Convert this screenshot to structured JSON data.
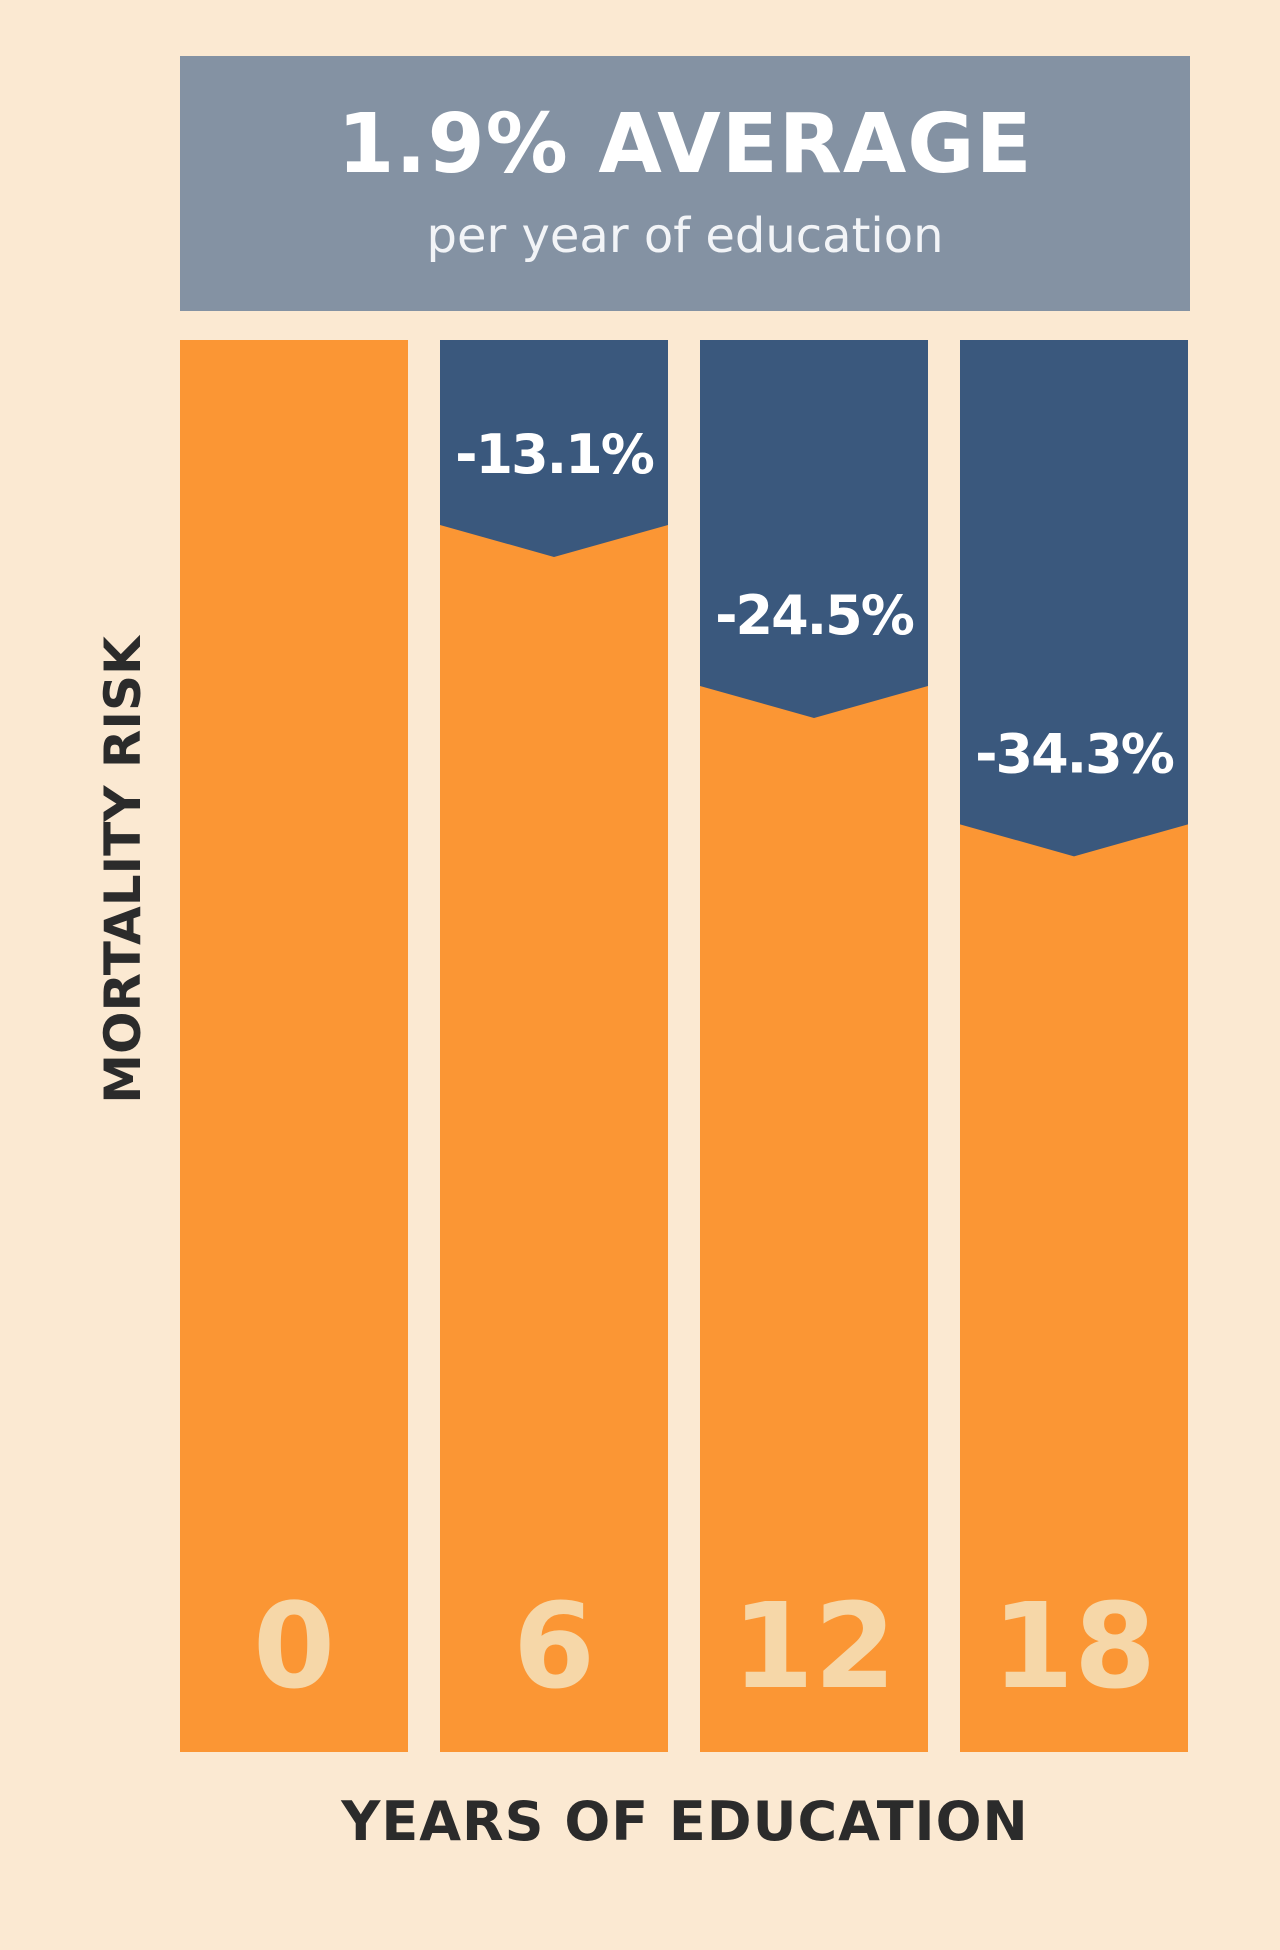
{
  "header": {
    "title": "1.9% AVERAGE",
    "subtitle": "per year of education"
  },
  "colors": {
    "background": "#fbe9d2",
    "header": "#8492a3",
    "risk_bar": "#fb9634",
    "reduction_bar": "#3a587d",
    "category_text": "#f6d7a8"
  },
  "chart_data": {
    "type": "bar",
    "title": "1.9% AVERAGE",
    "subtitle": "per year of education",
    "xlabel": "YEARS OF EDUCATION",
    "ylabel": "MORTALITY RISK",
    "categories": [
      "0",
      "6",
      "12",
      "18"
    ],
    "series": [
      {
        "values": [
          100,
          86.9,
          75.5,
          65.7
        ]
      },
      {
        "values": [
          0,
          13.1,
          24.5,
          34.3
        ]
      }
    ],
    "data_labels": [
      "",
      "-13.1%",
      "-24.5%",
      "-34.3%"
    ],
    "stacked": true,
    "ylim": [
      0,
      100
    ],
    "grid": false,
    "legend": "none"
  }
}
